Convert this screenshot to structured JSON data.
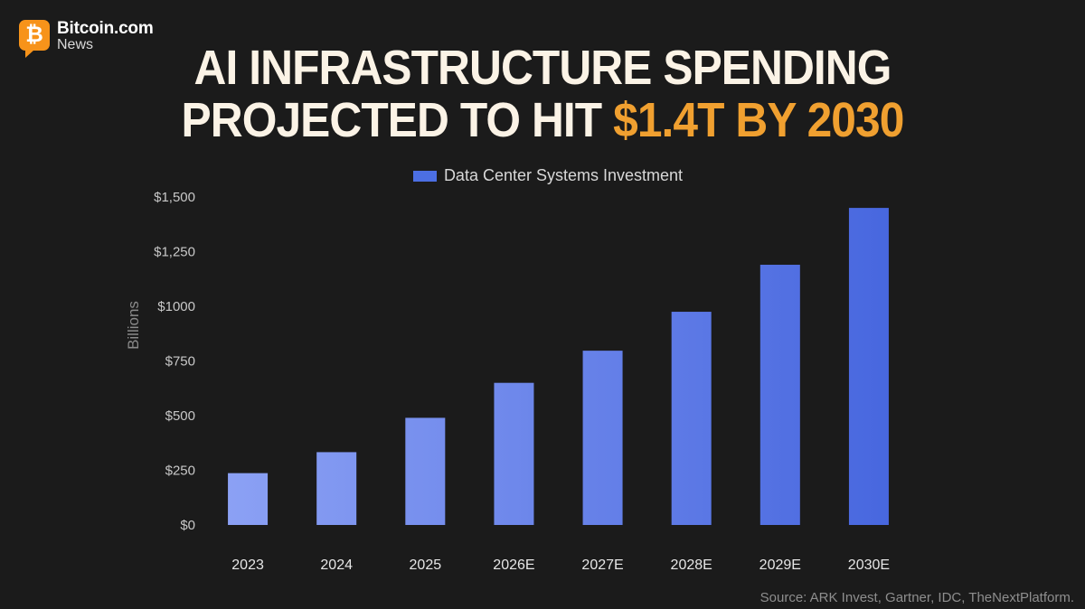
{
  "brand": {
    "glyph": "₿",
    "name": "Bitcoin.com",
    "sub": "News",
    "color": "#f7931a"
  },
  "title": {
    "line1": "AI INFRASTRUCTURE SPENDING",
    "line2_prefix": "PROJECTED TO HIT ",
    "line2_accent": "$1.4T BY 2030",
    "accent_color": "#f0a030"
  },
  "source": "Source: ARK Invest, Gartner, IDC, TheNextPlatform.",
  "chart_data": {
    "type": "bar",
    "title": "AI INFRASTRUCTURE SPENDING PROJECTED TO HIT $1.4T BY 2030",
    "xlabel": "",
    "ylabel": "Billions",
    "categories": [
      "2023",
      "2024",
      "2025",
      "2026E",
      "2027E",
      "2028E",
      "2029E",
      "2030E"
    ],
    "series": [
      {
        "name": "Data Center Systems Investment",
        "values": [
          237,
          333,
          490,
          650,
          797,
          975,
          1190,
          1450
        ]
      }
    ],
    "ylim": [
      0,
      1500
    ],
    "yticks": [
      0,
      250,
      500,
      750,
      1000,
      1250,
      1500
    ],
    "ytick_labels": [
      "$0",
      "$250",
      "$500",
      "$750",
      "$1000",
      "$1,250",
      "$1,500"
    ],
    "grid": false,
    "legend": "top-center",
    "bar_color_start": "#8ea3f5",
    "bar_color_end": "#4565de"
  }
}
